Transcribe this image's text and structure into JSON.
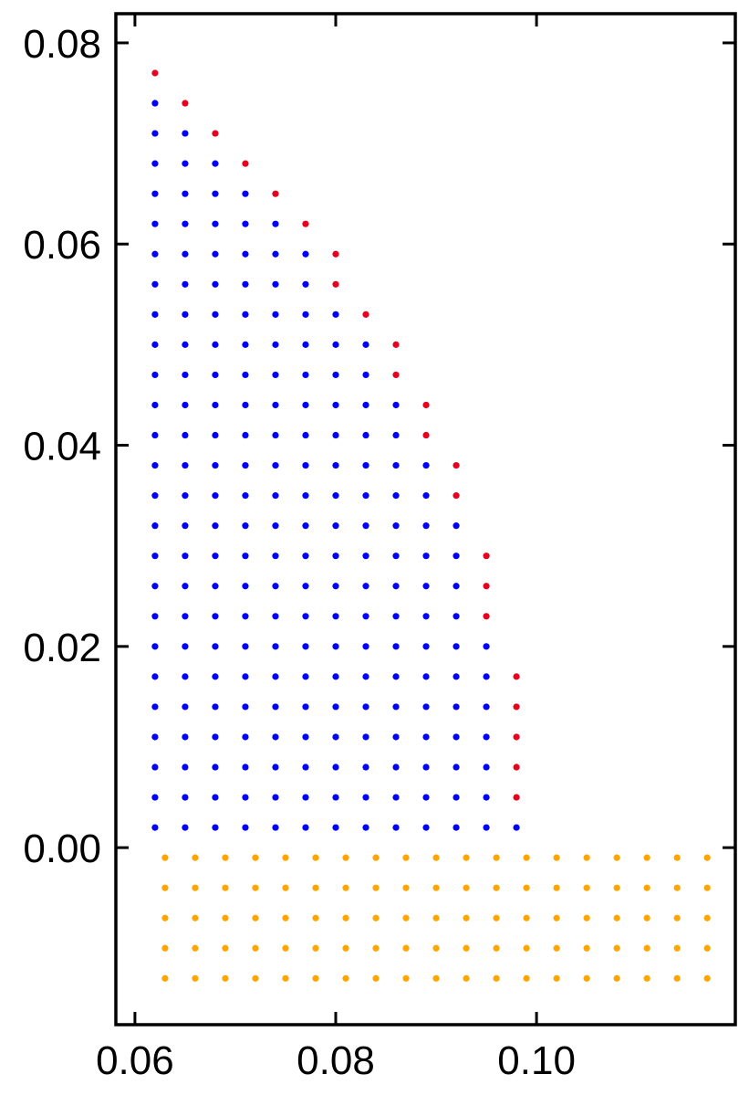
{
  "chart_data": {
    "type": "scatter",
    "xlim": [
      0.0581,
      0.1198
    ],
    "ylim": [
      -0.0176,
      0.0829
    ],
    "xticks": [
      0.06,
      0.08,
      {
        "value": 0.1,
        "label": "0.10"
      }
    ],
    "yticks": [
      {
        "value": 0,
        "label": "0.00"
      },
      0.02,
      0.04,
      0.06,
      0.08
    ],
    "series": [
      {
        "color": "#0000ff",
        "x": [
          0.062,
          0.062,
          0.062,
          0.062,
          0.062,
          0.062,
          0.062,
          0.062,
          0.062,
          0.062,
          0.062,
          0.062,
          0.062,
          0.062,
          0.062,
          0.062,
          0.062,
          0.062,
          0.062,
          0.062,
          0.062,
          0.062,
          0.062,
          0.062,
          0.062,
          0.065,
          0.065,
          0.065,
          0.065,
          0.065,
          0.065,
          0.065,
          0.065,
          0.065,
          0.065,
          0.065,
          0.065,
          0.065,
          0.065,
          0.065,
          0.065,
          0.065,
          0.065,
          0.065,
          0.065,
          0.065,
          0.065,
          0.065,
          0.065,
          0.068,
          0.068,
          0.068,
          0.068,
          0.068,
          0.068,
          0.068,
          0.068,
          0.068,
          0.068,
          0.068,
          0.068,
          0.068,
          0.068,
          0.068,
          0.068,
          0.068,
          0.068,
          0.068,
          0.068,
          0.068,
          0.068,
          0.068,
          0.071,
          0.071,
          0.071,
          0.071,
          0.071,
          0.071,
          0.071,
          0.071,
          0.071,
          0.071,
          0.071,
          0.071,
          0.071,
          0.071,
          0.071,
          0.071,
          0.071,
          0.071,
          0.071,
          0.071,
          0.071,
          0.071,
          0.074,
          0.074,
          0.074,
          0.074,
          0.074,
          0.074,
          0.074,
          0.074,
          0.074,
          0.074,
          0.074,
          0.074,
          0.074,
          0.074,
          0.074,
          0.074,
          0.074,
          0.074,
          0.074,
          0.074,
          0.074,
          0.077,
          0.077,
          0.077,
          0.077,
          0.077,
          0.077,
          0.077,
          0.077,
          0.077,
          0.077,
          0.077,
          0.077,
          0.077,
          0.077,
          0.077,
          0.077,
          0.077,
          0.077,
          0.077,
          0.077,
          0.08,
          0.08,
          0.08,
          0.08,
          0.08,
          0.08,
          0.08,
          0.08,
          0.08,
          0.08,
          0.08,
          0.08,
          0.08,
          0.08,
          0.08,
          0.08,
          0.08,
          0.08,
          0.083,
          0.083,
          0.083,
          0.083,
          0.083,
          0.083,
          0.083,
          0.083,
          0.083,
          0.083,
          0.083,
          0.083,
          0.083,
          0.083,
          0.083,
          0.083,
          0.083,
          0.086,
          0.086,
          0.086,
          0.086,
          0.086,
          0.086,
          0.086,
          0.086,
          0.086,
          0.086,
          0.086,
          0.086,
          0.086,
          0.086,
          0.086,
          0.089,
          0.089,
          0.089,
          0.089,
          0.089,
          0.089,
          0.089,
          0.089,
          0.089,
          0.089,
          0.089,
          0.089,
          0.089,
          0.092,
          0.092,
          0.092,
          0.092,
          0.092,
          0.092,
          0.092,
          0.092,
          0.092,
          0.092,
          0.092,
          0.095,
          0.095,
          0.095,
          0.095,
          0.095,
          0.095,
          0.095,
          0.098
        ],
        "y": [
          0.002,
          0.005,
          0.008,
          0.011,
          0.014,
          0.017,
          0.02,
          0.023,
          0.026,
          0.029,
          0.032,
          0.035,
          0.038,
          0.041,
          0.044,
          0.047,
          0.05,
          0.053,
          0.056,
          0.059,
          0.062,
          0.065,
          0.068,
          0.071,
          0.074,
          0.002,
          0.005,
          0.008,
          0.011,
          0.014,
          0.017,
          0.02,
          0.023,
          0.026,
          0.029,
          0.032,
          0.035,
          0.038,
          0.041,
          0.044,
          0.047,
          0.05,
          0.053,
          0.056,
          0.059,
          0.062,
          0.065,
          0.068,
          0.071,
          0.002,
          0.005,
          0.008,
          0.011,
          0.014,
          0.017,
          0.02,
          0.023,
          0.026,
          0.029,
          0.032,
          0.035,
          0.038,
          0.041,
          0.044,
          0.047,
          0.05,
          0.053,
          0.056,
          0.059,
          0.062,
          0.065,
          0.068,
          0.002,
          0.005,
          0.008,
          0.011,
          0.014,
          0.017,
          0.02,
          0.023,
          0.026,
          0.029,
          0.032,
          0.035,
          0.038,
          0.041,
          0.044,
          0.047,
          0.05,
          0.053,
          0.056,
          0.059,
          0.062,
          0.065,
          0.002,
          0.005,
          0.008,
          0.011,
          0.014,
          0.017,
          0.02,
          0.023,
          0.026,
          0.029,
          0.032,
          0.035,
          0.038,
          0.041,
          0.044,
          0.047,
          0.05,
          0.053,
          0.056,
          0.059,
          0.062,
          0.002,
          0.005,
          0.008,
          0.011,
          0.014,
          0.017,
          0.02,
          0.023,
          0.026,
          0.029,
          0.032,
          0.035,
          0.038,
          0.041,
          0.044,
          0.047,
          0.05,
          0.053,
          0.056,
          0.059,
          0.002,
          0.005,
          0.008,
          0.011,
          0.014,
          0.017,
          0.02,
          0.023,
          0.026,
          0.029,
          0.032,
          0.035,
          0.038,
          0.041,
          0.044,
          0.047,
          0.05,
          0.053,
          0.002,
          0.005,
          0.008,
          0.011,
          0.014,
          0.017,
          0.02,
          0.023,
          0.026,
          0.029,
          0.032,
          0.035,
          0.038,
          0.041,
          0.044,
          0.047,
          0.05,
          0.002,
          0.005,
          0.008,
          0.011,
          0.014,
          0.017,
          0.02,
          0.023,
          0.026,
          0.029,
          0.032,
          0.035,
          0.038,
          0.041,
          0.044,
          0.002,
          0.005,
          0.008,
          0.011,
          0.014,
          0.017,
          0.02,
          0.023,
          0.026,
          0.029,
          0.032,
          0.035,
          0.038,
          0.002,
          0.005,
          0.008,
          0.011,
          0.014,
          0.017,
          0.02,
          0.023,
          0.026,
          0.029,
          0.032,
          0.002,
          0.005,
          0.008,
          0.011,
          0.014,
          0.017,
          0.02,
          0.002
        ]
      },
      {
        "color": "#e8001c",
        "x": [
          0.062,
          0.065,
          0.068,
          0.071,
          0.074,
          0.077,
          0.08,
          0.08,
          0.083,
          0.086,
          0.086,
          0.089,
          0.089,
          0.092,
          0.092,
          0.095,
          0.095,
          0.095,
          0.098,
          0.098,
          0.098,
          0.098,
          0.098
        ],
        "y": [
          0.077,
          0.074,
          0.071,
          0.068,
          0.065,
          0.062,
          0.056,
          0.059,
          0.053,
          0.047,
          0.05,
          0.041,
          0.044,
          0.035,
          0.038,
          0.023,
          0.026,
          0.029,
          0.005,
          0.008,
          0.011,
          0.014,
          0.017
        ]
      },
      {
        "color": "#ffa500",
        "x": [
          0.063,
          0.066,
          0.069,
          0.072,
          0.075,
          0.078,
          0.081,
          0.084,
          0.087,
          0.09,
          0.093,
          0.096,
          0.099,
          0.102,
          0.105,
          0.108,
          0.111,
          0.114,
          0.117,
          0.063,
          0.066,
          0.069,
          0.072,
          0.075,
          0.078,
          0.081,
          0.084,
          0.087,
          0.09,
          0.093,
          0.096,
          0.099,
          0.102,
          0.105,
          0.108,
          0.111,
          0.114,
          0.117,
          0.063,
          0.066,
          0.069,
          0.072,
          0.075,
          0.078,
          0.081,
          0.084,
          0.087,
          0.09,
          0.093,
          0.096,
          0.099,
          0.102,
          0.105,
          0.108,
          0.111,
          0.114,
          0.117,
          0.063,
          0.066,
          0.069,
          0.072,
          0.075,
          0.078,
          0.081,
          0.084,
          0.087,
          0.09,
          0.093,
          0.096,
          0.099,
          0.102,
          0.105,
          0.108,
          0.111,
          0.114,
          0.117,
          0.063,
          0.066,
          0.069,
          0.072,
          0.075,
          0.078,
          0.081,
          0.084,
          0.087,
          0.09,
          0.093,
          0.096,
          0.099,
          0.102,
          0.105,
          0.108,
          0.111,
          0.114,
          0.117
        ],
        "y": [
          -0.001,
          -0.001,
          -0.001,
          -0.001,
          -0.001,
          -0.001,
          -0.001,
          -0.001,
          -0.001,
          -0.001,
          -0.001,
          -0.001,
          -0.001,
          -0.001,
          -0.001,
          -0.001,
          -0.001,
          -0.001,
          -0.001,
          -0.004,
          -0.004,
          -0.004,
          -0.004,
          -0.004,
          -0.004,
          -0.004,
          -0.004,
          -0.004,
          -0.004,
          -0.004,
          -0.004,
          -0.004,
          -0.004,
          -0.004,
          -0.004,
          -0.004,
          -0.004,
          -0.004,
          -0.007,
          -0.007,
          -0.007,
          -0.007,
          -0.007,
          -0.007,
          -0.007,
          -0.007,
          -0.007,
          -0.007,
          -0.007,
          -0.007,
          -0.007,
          -0.007,
          -0.007,
          -0.007,
          -0.007,
          -0.007,
          -0.007,
          -0.01,
          -0.01,
          -0.01,
          -0.01,
          -0.01,
          -0.01,
          -0.01,
          -0.01,
          -0.01,
          -0.01,
          -0.01,
          -0.01,
          -0.01,
          -0.01,
          -0.01,
          -0.01,
          -0.01,
          -0.01,
          -0.01,
          -0.013,
          -0.013,
          -0.013,
          -0.013,
          -0.013,
          -0.013,
          -0.013,
          -0.013,
          -0.013,
          -0.013,
          -0.013,
          -0.013,
          -0.013,
          -0.013,
          -0.013,
          -0.013,
          -0.013,
          -0.013,
          -0.013
        ]
      }
    ]
  }
}
